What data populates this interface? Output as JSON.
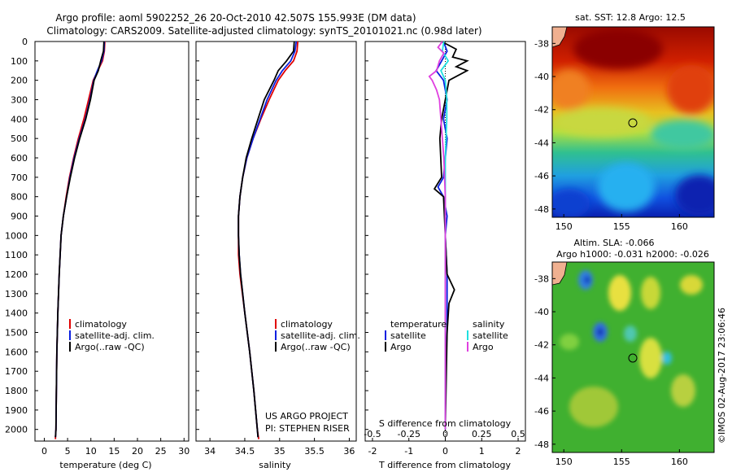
{
  "header": {
    "line1": "Argo profile: aoml 5902252_26 20-Oct-2010 42.507S 155.993E (DM data)",
    "line2": "Climatology: CARS2009. Satellite-adjusted climatology: synTS_20101021.nc (0.98d later)"
  },
  "colors": {
    "climatology": "#e00000",
    "satellite": "#0a1fe0",
    "argo": "#000000",
    "salinity_sat": "#20e0e0",
    "salinity_argo": "#e040e0"
  },
  "depth_ticks": [
    0,
    100,
    200,
    300,
    400,
    500,
    600,
    700,
    800,
    900,
    1000,
    1100,
    1200,
    1300,
    1400,
    1500,
    1600,
    1700,
    1800,
    1900,
    2000
  ],
  "chart_data": [
    {
      "type": "line",
      "id": "temperature",
      "xlabel": "temperature (deg C)",
      "ylabel": "",
      "xlim": [
        -2,
        31
      ],
      "ylim": [
        2060,
        0
      ],
      "xticks": [
        0,
        5,
        10,
        15,
        20,
        25,
        30
      ],
      "xtick_labels": [
        "0",
        "5",
        "10",
        "15",
        "20",
        "25",
        "30"
      ],
      "legend": [
        "climatology",
        "satellite-adj. clim.",
        "Argo(..raw -QC)"
      ],
      "series": [
        {
          "name": "climatology",
          "color": "#e00000",
          "depth": [
            0,
            50,
            100,
            150,
            200,
            300,
            400,
            500,
            600,
            700,
            800,
            900,
            1000,
            1200,
            1400,
            1600,
            1800,
            2000,
            2040,
            2050
          ],
          "values": [
            13.0,
            12.9,
            12.5,
            11.5,
            10.5,
            9.5,
            8.5,
            7.3,
            6.3,
            5.4,
            4.7,
            4.1,
            3.6,
            3.2,
            2.9,
            2.7,
            2.6,
            2.5,
            2.4,
            2.4
          ]
        },
        {
          "name": "satellite-adj. clim.",
          "color": "#0a1fe0",
          "depth": [
            0,
            50,
            100,
            150,
            200,
            300,
            400,
            500,
            600,
            700,
            800,
            900,
            1000,
            1200,
            1400,
            1600,
            1800,
            2000,
            2040
          ],
          "values": [
            12.9,
            12.8,
            12.3,
            11.4,
            10.6,
            9.8,
            8.8,
            7.5,
            6.4,
            5.5,
            4.8,
            4.1,
            3.6,
            3.2,
            2.9,
            2.7,
            2.6,
            2.5,
            2.4
          ]
        },
        {
          "name": "Argo(..raw -QC)",
          "color": "#000000",
          "depth": [
            0,
            50,
            100,
            150,
            200,
            300,
            400,
            500,
            600,
            700,
            800,
            900,
            1000,
            1200,
            1400,
            1600,
            1800,
            2000,
            2040
          ],
          "values": [
            12.8,
            12.7,
            12.1,
            11.6,
            10.7,
            9.9,
            8.9,
            7.6,
            6.5,
            5.6,
            4.8,
            4.1,
            3.6,
            3.2,
            2.9,
            2.7,
            2.6,
            2.5,
            2.4
          ]
        }
      ]
    },
    {
      "type": "line",
      "id": "salinity",
      "xlabel": "salinity",
      "ylabel": "",
      "xlim": [
        33.8,
        36.1
      ],
      "ylim": [
        2060,
        0
      ],
      "xticks": [
        34,
        34.5,
        35,
        35.5,
        36
      ],
      "xtick_labels": [
        "34",
        "34.5",
        "35",
        "35.5",
        "36"
      ],
      "legend": [
        "climatology",
        "satellite-adj. clim.",
        "Argo(..raw -QC)"
      ],
      "annotations": [
        "US ARGO PROJECT",
        "PI: STEPHEN RISER"
      ],
      "series": [
        {
          "name": "climatology",
          "color": "#e00000",
          "depth": [
            0,
            50,
            100,
            150,
            200,
            300,
            400,
            500,
            600,
            700,
            800,
            900,
            1000,
            1100,
            1200,
            1400,
            1600,
            1800,
            2000,
            2050
          ],
          "values": [
            35.26,
            35.25,
            35.2,
            35.08,
            34.98,
            34.85,
            34.73,
            34.62,
            34.53,
            34.47,
            34.43,
            34.41,
            34.41,
            34.41,
            34.43,
            34.5,
            34.57,
            34.63,
            34.68,
            34.7
          ]
        },
        {
          "name": "satellite-adj. clim.",
          "color": "#0a1fe0",
          "depth": [
            0,
            50,
            100,
            150,
            200,
            300,
            400,
            500,
            600,
            700,
            800,
            900,
            1000,
            1100,
            1200,
            1400,
            1600,
            1800,
            2000,
            2040
          ],
          "values": [
            35.24,
            35.22,
            35.16,
            35.04,
            34.95,
            34.82,
            34.72,
            34.62,
            34.53,
            34.47,
            34.43,
            34.41,
            34.41,
            34.42,
            34.44,
            34.5,
            34.57,
            34.63,
            34.68,
            34.69
          ]
        },
        {
          "name": "Argo(..raw -QC)",
          "color": "#000000",
          "depth": [
            0,
            50,
            100,
            150,
            200,
            300,
            400,
            500,
            600,
            700,
            800,
            900,
            1000,
            1100,
            1200,
            1400,
            1600,
            1800,
            2000,
            2040
          ],
          "values": [
            35.21,
            35.2,
            35.1,
            34.98,
            34.92,
            34.78,
            34.69,
            34.6,
            34.52,
            34.47,
            34.43,
            34.41,
            34.41,
            34.42,
            34.44,
            34.5,
            34.57,
            34.63,
            34.68,
            34.69
          ]
        }
      ]
    },
    {
      "type": "line",
      "id": "differences",
      "xlabel": "T difference from climatology",
      "xlabel_top": "S difference from climatology",
      "xlim": [
        -2.2,
        2.2
      ],
      "ylim": [
        2060,
        0
      ],
      "xticks": [
        -2,
        -1,
        0,
        1,
        2
      ],
      "xtick_labels": [
        "-2",
        "-1",
        "0",
        "1",
        "2"
      ],
      "xticks_top": [
        -0.5,
        -0.25,
        0,
        0.25,
        0.5
      ],
      "xtick_labels_top": [
        "-0.5",
        "-0.25",
        "0",
        "0.25",
        "0.5"
      ],
      "legend_temperature_title": "temperature",
      "legend_salinity_title": "salinity",
      "legend": [
        "satellite",
        "Argo",
        "satellite",
        "Argo"
      ],
      "series": [
        {
          "name": "T satellite",
          "color": "#0a1fe0",
          "depth": [
            0,
            50,
            100,
            150,
            200,
            300,
            400,
            500,
            700,
            750,
            800,
            900,
            1000,
            1200,
            1300,
            1500,
            1700,
            2000
          ],
          "values": [
            -0.05,
            0.05,
            -0.1,
            -0.25,
            -0.05,
            0.05,
            -0.05,
            0.05,
            -0.05,
            -0.2,
            -0.05,
            0.05,
            0.0,
            0.05,
            0.05,
            0.05,
            0.0,
            0.0
          ]
        },
        {
          "name": "T Argo",
          "color": "#000000",
          "depth": [
            0,
            40,
            80,
            100,
            130,
            150,
            200,
            300,
            400,
            500,
            700,
            760,
            800,
            1000,
            1200,
            1280,
            1350,
            1500,
            2000
          ],
          "values": [
            -0.1,
            0.3,
            0.2,
            0.6,
            0.3,
            0.6,
            0.1,
            0.0,
            -0.1,
            -0.15,
            -0.1,
            -0.3,
            -0.05,
            0.0,
            0.05,
            0.25,
            0.1,
            0.05,
            0.0
          ]
        },
        {
          "name": "S satellite",
          "color": "#20e0e0",
          "depth": [
            0,
            50,
            100,
            150,
            200,
            300,
            400,
            600,
            800,
            1000,
            1200,
            1500,
            2000
          ],
          "values": [
            -0.01,
            -0.02,
            0.02,
            -0.03,
            0.0,
            0.01,
            0.01,
            0.0,
            0.0,
            0.0,
            0.0,
            0.0,
            0.0
          ]
        },
        {
          "name": "S Argo",
          "color": "#e040e0",
          "depth": [
            0,
            30,
            60,
            100,
            150,
            180,
            200,
            250,
            300,
            400,
            600,
            800,
            1000,
            1200,
            1500,
            2000
          ],
          "values": [
            -0.02,
            -0.05,
            -0.01,
            -0.04,
            -0.06,
            -0.11,
            -0.09,
            -0.06,
            -0.04,
            -0.03,
            -0.01,
            0.0,
            0.0,
            0.0,
            0.0,
            0.0
          ]
        }
      ]
    },
    {
      "type": "heatmap",
      "id": "sst_map",
      "title": "sat. SST: 12.8  Argo: 12.5",
      "xlim": [
        149,
        163
      ],
      "ylim": [
        -48.5,
        -37
      ],
      "xticks": [
        150,
        155,
        160
      ],
      "xtick_labels": [
        "150",
        "155",
        "160"
      ],
      "yticks": [
        -38,
        -40,
        -42,
        -44,
        -46,
        -48
      ],
      "ytick_labels": [
        "-38",
        "-40",
        "-42",
        "-44",
        "-46",
        "-48"
      ],
      "float_position": {
        "lon": 155.993,
        "lat": -42.507
      }
    },
    {
      "type": "heatmap",
      "id": "sla_map",
      "title": "Altim. SLA: -0.066",
      "subtitle": "Argo h1000: -0.031 h2000: -0.026",
      "xlim": [
        149,
        163
      ],
      "ylim": [
        -48.5,
        -37
      ],
      "xticks": [
        150,
        155,
        160
      ],
      "xtick_labels": [
        "150",
        "155",
        "160"
      ],
      "yticks": [
        -38,
        -40,
        -42,
        -44,
        -46,
        -48
      ],
      "ytick_labels": [
        "-38",
        "-40",
        "-42",
        "-44",
        "-46",
        "-48"
      ],
      "float_position": {
        "lon": 155.993,
        "lat": -42.507
      }
    }
  ],
  "footer": {
    "imos_stamp": "©IMOS 02-Aug-2017 23:06:46"
  }
}
